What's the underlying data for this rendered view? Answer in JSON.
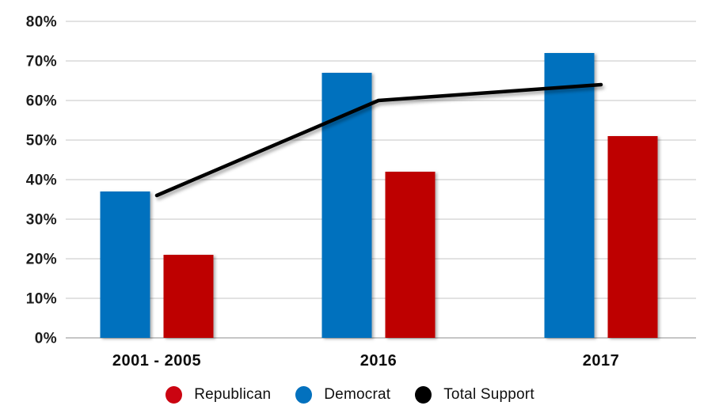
{
  "chart_data": {
    "type": "bar",
    "title": "",
    "xlabel": "",
    "ylabel": "",
    "categories": [
      "2001 - 2005",
      "2016",
      "2017"
    ],
    "series": [
      {
        "name": "Democrat",
        "kind": "bar",
        "color": "#0371BE",
        "values": [
          37,
          67,
          72
        ]
      },
      {
        "name": "Republican",
        "kind": "bar",
        "color": "#BE0004",
        "values": [
          21,
          42,
          51
        ]
      },
      {
        "name": "Total Support",
        "kind": "line",
        "color": "#000000",
        "values": [
          36,
          60,
          64
        ]
      }
    ],
    "ylim": [
      0,
      80
    ],
    "yticks": [
      0,
      10,
      20,
      30,
      40,
      50,
      60,
      70,
      80
    ],
    "ytick_labels": [
      "0%",
      "10%",
      "20%",
      "30%",
      "40%",
      "50%",
      "60%",
      "70%",
      "80%"
    ],
    "grid": true,
    "legend_position": "bottom",
    "legend": {
      "items": [
        {
          "label": "Republican",
          "color": "#CB0411"
        },
        {
          "label": "Democrat",
          "color": "#0371BE"
        },
        {
          "label": "Total Support",
          "color": "#000000"
        }
      ]
    },
    "colors": {
      "gridline": "#d8d8d8",
      "baseline": "#c6c6c6",
      "tick_text": "#1c1c1c"
    }
  }
}
